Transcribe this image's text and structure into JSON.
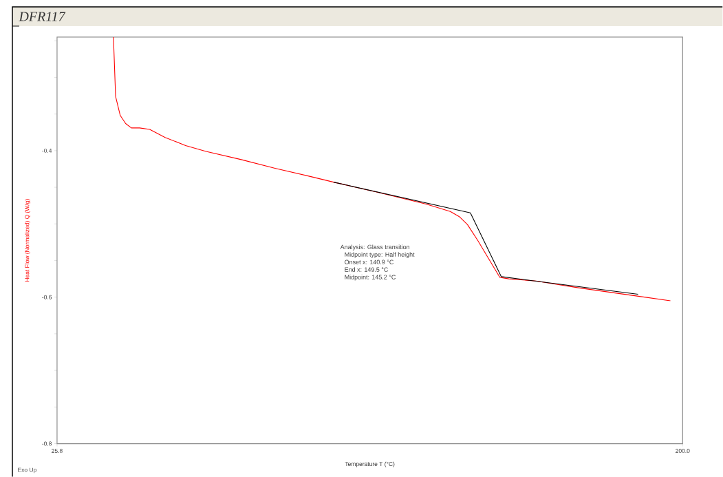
{
  "chart_data": {
    "type": "line",
    "title": "DFR117",
    "xlabel": "Temperature T (°C)",
    "ylabel": "Heat Flow (Normalized) Q (W/g)",
    "xlim": [
      25.8,
      200
    ],
    "xticks": [
      25.8,
      {
        "value": 200,
        "label": "200.0"
      }
    ],
    "ylim": [
      -0.8,
      -0.245
    ],
    "yticks": [
      -0.8,
      {
        "value": -0.75,
        "label": null
      },
      {
        "value": -0.7,
        "label": null
      },
      {
        "value": -0.65,
        "label": null
      },
      -0.6,
      {
        "value": -0.55,
        "label": null
      },
      {
        "value": -0.5,
        "label": null
      },
      {
        "value": -0.45,
        "label": null
      },
      -0.4,
      {
        "value": -0.35,
        "label": null
      },
      {
        "value": -0.3,
        "label": null
      },
      {
        "value": -0.25,
        "label": null
      }
    ],
    "series": [
      {
        "color": "#ff0000",
        "x": [
          41.5,
          42.1,
          43.4,
          44.9,
          46.5,
          48.8,
          51.6,
          55.9,
          61.6,
          67.3,
          76.9,
          86.5,
          96.1,
          102.8,
          115.2,
          128.6,
          135.3,
          137.8,
          140.1,
          143.0,
          145.8,
          149.1,
          151.6,
          159.2,
          170.7,
          182.2,
          188.0,
          196.6
        ],
        "values": [
          -0.245,
          -0.326,
          -0.352,
          -0.363,
          -0.369,
          -0.369,
          -0.371,
          -0.382,
          -0.393,
          -0.401,
          -0.412,
          -0.424,
          -0.435,
          -0.443,
          -0.457,
          -0.473,
          -0.483,
          -0.49,
          -0.501,
          -0.523,
          -0.546,
          -0.573,
          -0.575,
          -0.578,
          -0.587,
          -0.595,
          -0.599,
          -0.605
        ]
      },
      {
        "color": "#000000",
        "x": [
          102.8,
          140.9,
          149.5,
          187.6
        ],
        "values": [
          -0.443,
          -0.485,
          -0.572,
          -0.596
        ]
      }
    ],
    "annotations": [
      "Analysis: Glass transition",
      "Midpoint type: Half height",
      "Onset x: 140.9 °C",
      "End x: 149.5 °C",
      "Midpoint: 145.2 °C",
      "Exo Up"
    ]
  }
}
